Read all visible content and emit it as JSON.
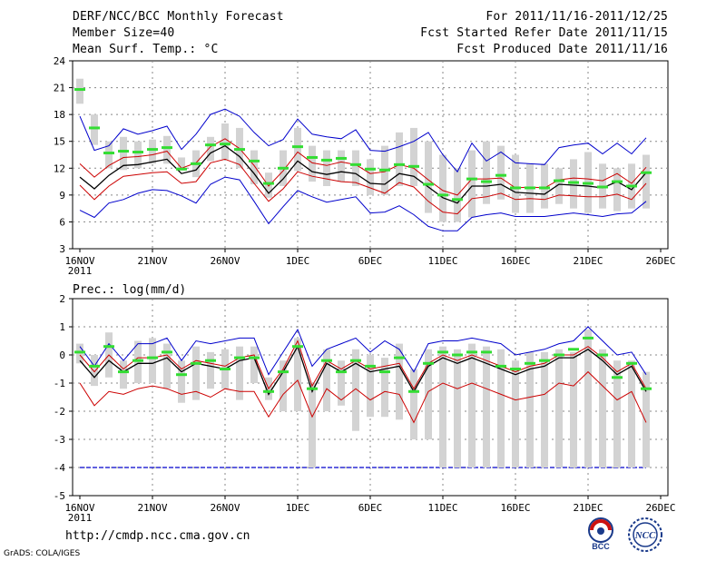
{
  "header": {
    "title": "DERF/NCC/BCC Monthly Forecast",
    "member": "Member Size=40",
    "period": "For 2011/11/16-2011/12/25",
    "refer": "Fcst Started Refer Date 2011/11/15",
    "produced": "Fcst Produced Date 2011/11/16"
  },
  "footer": {
    "url": "http://cmdp.ncc.cma.gov.cn",
    "credit": "GrADS: COLA/IGES",
    "logo_left_text": "BCC",
    "logo_right_text": "NCC"
  },
  "colors": {
    "mean": "#000000",
    "spread": "#cc0000",
    "extreme": "#0000cc",
    "box": "#d3d3d3",
    "median": "#33dd33",
    "grid": "#888888"
  },
  "chart_data": [
    {
      "type": "line",
      "ylabel": "Mean Surf. Temp.: °C",
      "ylim": [
        3,
        24
      ],
      "yticks": [
        3,
        6,
        9,
        12,
        15,
        18,
        21,
        24
      ],
      "x": [
        1,
        2,
        3,
        4,
        5,
        6,
        7,
        8,
        9,
        10,
        11,
        12,
        13,
        14,
        15,
        16,
        17,
        18,
        19,
        20,
        21,
        22,
        23,
        24,
        25,
        26,
        27,
        28,
        29,
        30,
        31,
        32,
        33,
        34,
        35,
        36,
        37,
        38,
        39,
        40
      ],
      "xticks": [
        {
          "x": 1,
          "label": "16NOV",
          "sub": "2011"
        },
        {
          "x": 6,
          "label": "21NOV"
        },
        {
          "x": 11,
          "label": "26NOV"
        },
        {
          "x": 16,
          "label": "1DEC"
        },
        {
          "x": 21,
          "label": "6DEC"
        },
        {
          "x": 26,
          "label": "11DEC"
        },
        {
          "x": 31,
          "label": "16DEC"
        },
        {
          "x": 36,
          "label": "21DEC"
        },
        {
          "x": 41,
          "label": "26DEC"
        }
      ],
      "series": [
        {
          "name": "max",
          "values": [
            17.8,
            14.0,
            14.5,
            16.4,
            15.8,
            16.2,
            16.7,
            14.1,
            15.8,
            18.0,
            18.6,
            17.8,
            16.0,
            14.5,
            15.2,
            17.5,
            15.8,
            15.5,
            15.3,
            16.3,
            14.0,
            13.9,
            14.4,
            15.0,
            16.0,
            13.5,
            11.6,
            14.8,
            12.8,
            13.8,
            12.6,
            12.5,
            12.4,
            14.3,
            14.6,
            14.8,
            13.6,
            14.8,
            13.6,
            15.4
          ]
        },
        {
          "name": "upper",
          "values": [
            12.5,
            11.0,
            12.3,
            13.2,
            13.3,
            13.5,
            13.9,
            12.0,
            12.6,
            14.4,
            15.3,
            14.2,
            12.3,
            10.0,
            11.7,
            13.8,
            12.6,
            12.3,
            12.7,
            12.4,
            11.4,
            11.6,
            12.4,
            12.0,
            10.7,
            9.5,
            9.0,
            10.8,
            10.8,
            10.9,
            9.8,
            9.9,
            9.8,
            10.7,
            10.9,
            10.8,
            10.6,
            11.4,
            10.3,
            12.1
          ]
        },
        {
          "name": "mean",
          "values": [
            11.0,
            9.7,
            11.2,
            12.3,
            12.4,
            12.7,
            13.0,
            11.4,
            11.8,
            13.7,
            14.5,
            13.3,
            11.4,
            9.2,
            10.8,
            12.8,
            11.6,
            11.3,
            11.6,
            11.4,
            10.3,
            10.2,
            11.4,
            11.1,
            9.9,
            8.7,
            8.1,
            10.0,
            10.0,
            10.2,
            9.3,
            9.2,
            9.1,
            10.2,
            10.1,
            10.0,
            9.8,
            10.5,
            9.6,
            11.5
          ]
        },
        {
          "name": "lower",
          "values": [
            10.1,
            8.5,
            10.0,
            11.1,
            11.3,
            11.5,
            11.6,
            10.3,
            10.5,
            12.6,
            13.0,
            12.4,
            10.3,
            8.3,
            9.7,
            11.6,
            11.1,
            10.8,
            10.5,
            10.4,
            9.8,
            9.2,
            10.4,
            9.9,
            8.3,
            7.1,
            6.9,
            8.6,
            8.8,
            9.2,
            8.5,
            8.6,
            8.5,
            9.0,
            8.9,
            8.8,
            8.8,
            9.1,
            8.5,
            10.3
          ]
        },
        {
          "name": "min",
          "values": [
            7.3,
            6.5,
            8.1,
            8.5,
            9.2,
            9.6,
            9.5,
            8.9,
            8.1,
            10.2,
            11.0,
            10.7,
            8.3,
            5.8,
            7.7,
            9.5,
            8.8,
            8.2,
            8.5,
            8.8,
            7.0,
            7.1,
            7.8,
            6.8,
            5.5,
            5.0,
            5.0,
            6.5,
            6.8,
            7.0,
            6.6,
            6.6,
            6.6,
            6.8,
            7.0,
            6.8,
            6.6,
            6.9,
            7.0,
            8.3
          ]
        }
      ],
      "boxes": [
        [
          19.2,
          22.0
        ],
        [
          14.6,
          18.0
        ],
        [
          12.0,
          15.0
        ],
        [
          11.8,
          15.5
        ],
        [
          12.0,
          15.0
        ],
        [
          12.5,
          15.2
        ],
        [
          12.5,
          15.6
        ],
        [
          11.8,
          13.2
        ],
        [
          11.0,
          14.0
        ],
        [
          12.8,
          15.5
        ],
        [
          13.0,
          17.0
        ],
        [
          12.0,
          16.5
        ],
        [
          10.2,
          14.0
        ],
        [
          8.7,
          11.5
        ],
        [
          10.0,
          14.0
        ],
        [
          11.7,
          16.5
        ],
        [
          10.5,
          14.5
        ],
        [
          10.0,
          14.0
        ],
        [
          10.5,
          14.0
        ],
        [
          10.0,
          14.0
        ],
        [
          9.0,
          13.0
        ],
        [
          9.0,
          14.5
        ],
        [
          10.0,
          16.0
        ],
        [
          10.0,
          16.5
        ],
        [
          7.0,
          15.0
        ],
        [
          6.0,
          13.5
        ],
        [
          6.0,
          12.0
        ],
        [
          6.5,
          14.0
        ],
        [
          8.0,
          15.0
        ],
        [
          8.5,
          14.5
        ],
        [
          7.0,
          13.5
        ],
        [
          7.0,
          12.5
        ],
        [
          7.5,
          12.5
        ],
        [
          8.0,
          12.0
        ],
        [
          7.5,
          13.0
        ],
        [
          7.0,
          13.8
        ],
        [
          7.5,
          12.5
        ],
        [
          7.2,
          12.0
        ],
        [
          7.5,
          12.5
        ],
        [
          7.5,
          13.5
        ]
      ],
      "medians": [
        20.8,
        16.5,
        13.7,
        13.9,
        13.8,
        14.1,
        14.3,
        11.9,
        12.5,
        14.6,
        14.7,
        14.1,
        12.8,
        10.3,
        12.0,
        14.4,
        13.2,
        12.9,
        13.1,
        12.4,
        11.9,
        11.8,
        12.4,
        12.2,
        10.2,
        9.0,
        8.5,
        10.8,
        10.5,
        11.2,
        9.8,
        9.8,
        9.8,
        10.6,
        10.4,
        10.3,
        9.9,
        10.5,
        10.0,
        11.5
      ]
    },
    {
      "type": "line",
      "ylabel": "Prec.: log(mm/d)",
      "ylim": [
        -5,
        2
      ],
      "yticks": [
        -5,
        -4,
        -3,
        -2,
        -1,
        0,
        1,
        2
      ],
      "x": [
        1,
        2,
        3,
        4,
        5,
        6,
        7,
        8,
        9,
        10,
        11,
        12,
        13,
        14,
        15,
        16,
        17,
        18,
        19,
        20,
        21,
        22,
        23,
        24,
        25,
        26,
        27,
        28,
        29,
        30,
        31,
        32,
        33,
        34,
        35,
        36,
        37,
        38,
        39,
        40
      ],
      "xticks": [
        {
          "x": 1,
          "label": "16NOV",
          "sub": "2011"
        },
        {
          "x": 6,
          "label": "21NOV"
        },
        {
          "x": 11,
          "label": "26NOV"
        },
        {
          "x": 16,
          "label": "1DEC"
        },
        {
          "x": 21,
          "label": "6DEC"
        },
        {
          "x": 26,
          "label": "11DEC"
        },
        {
          "x": 31,
          "label": "16DEC"
        },
        {
          "x": 36,
          "label": "21DEC"
        },
        {
          "x": 41,
          "label": "26DEC"
        }
      ],
      "reference_line": -4,
      "series": [
        {
          "name": "max",
          "values": [
            0.3,
            -0.4,
            0.4,
            -0.2,
            0.4,
            0.4,
            0.6,
            -0.2,
            0.5,
            0.4,
            0.5,
            0.6,
            0.6,
            -0.7,
            0.1,
            0.9,
            -0.4,
            0.2,
            0.4,
            0.6,
            0.1,
            0.5,
            0.2,
            -0.6,
            0.4,
            0.5,
            0.5,
            0.6,
            0.5,
            0.4,
            0.0,
            0.1,
            0.2,
            0.4,
            0.5,
            1.0,
            0.5,
            0.0,
            0.1,
            -0.7
          ]
        },
        {
          "name": "upper",
          "values": [
            0.0,
            -0.6,
            0.0,
            -0.5,
            -0.1,
            -0.1,
            0.0,
            -0.5,
            -0.2,
            -0.3,
            -0.4,
            -0.1,
            0.0,
            -1.2,
            -0.5,
            0.5,
            -1.1,
            -0.2,
            -0.5,
            -0.2,
            -0.5,
            -0.4,
            -0.3,
            -1.2,
            -0.3,
            0.0,
            -0.2,
            0.0,
            -0.2,
            -0.4,
            -0.6,
            -0.4,
            -0.3,
            0.0,
            0.0,
            0.3,
            -0.1,
            -0.6,
            -0.3,
            -1.2
          ]
        },
        {
          "name": "mean",
          "values": [
            -0.2,
            -0.8,
            -0.2,
            -0.6,
            -0.3,
            -0.3,
            -0.1,
            -0.6,
            -0.3,
            -0.4,
            -0.5,
            -0.2,
            -0.1,
            -1.4,
            -0.6,
            0.3,
            -1.3,
            -0.3,
            -0.6,
            -0.3,
            -0.6,
            -0.5,
            -0.4,
            -1.3,
            -0.4,
            -0.1,
            -0.3,
            -0.1,
            -0.3,
            -0.5,
            -0.7,
            -0.5,
            -0.4,
            -0.1,
            -0.1,
            0.2,
            -0.2,
            -0.7,
            -0.4,
            -1.3
          ]
        },
        {
          "name": "lower",
          "values": [
            -1.0,
            -1.8,
            -1.3,
            -1.4,
            -1.2,
            -1.1,
            -1.2,
            -1.4,
            -1.3,
            -1.5,
            -1.2,
            -1.3,
            -1.3,
            -2.2,
            -1.4,
            -0.9,
            -2.2,
            -1.2,
            -1.6,
            -1.2,
            -1.6,
            -1.3,
            -1.4,
            -2.4,
            -1.3,
            -1.0,
            -1.2,
            -1.0,
            -1.2,
            -1.4,
            -1.6,
            -1.5,
            -1.4,
            -1.0,
            -1.1,
            -0.6,
            -1.1,
            -1.6,
            -1.3,
            -2.4
          ]
        }
      ],
      "boxes": [
        [
          -0.3,
          0.4
        ],
        [
          -1.1,
          0.0
        ],
        [
          -0.8,
          0.8
        ],
        [
          -1.2,
          -0.2
        ],
        [
          -1.0,
          0.5
        ],
        [
          -1.0,
          0.6
        ],
        [
          -1.2,
          0.4
        ],
        [
          -1.7,
          -0.2
        ],
        [
          -1.6,
          0.3
        ],
        [
          -1.2,
          0.1
        ],
        [
          -1.2,
          0.2
        ],
        [
          -1.6,
          0.3
        ],
        [
          -1.0,
          0.3
        ],
        [
          -1.6,
          -0.8
        ],
        [
          -2.0,
          -0.2
        ],
        [
          -2.0,
          0.6
        ],
        [
          -4.0,
          -1.0
        ],
        [
          -2.0,
          0.2
        ],
        [
          -1.8,
          -0.2
        ],
        [
          -2.7,
          0.2
        ],
        [
          -2.2,
          0.0
        ],
        [
          -2.2,
          -0.1
        ],
        [
          -2.3,
          0.4
        ],
        [
          -3.0,
          -0.5
        ],
        [
          -3.0,
          0.2
        ],
        [
          -4.0,
          0.3
        ],
        [
          -4.0,
          0.2
        ],
        [
          -4.0,
          0.4
        ],
        [
          -4.0,
          0.3
        ],
        [
          -4.0,
          0.2
        ],
        [
          -4.0,
          -0.2
        ],
        [
          -4.0,
          0.1
        ],
        [
          -4.0,
          0.1
        ],
        [
          -4.0,
          0.2
        ],
        [
          -4.0,
          0.1
        ],
        [
          -4.0,
          0.9
        ],
        [
          -4.0,
          0.2
        ],
        [
          -4.0,
          -0.2
        ],
        [
          -4.0,
          -0.2
        ],
        [
          -4.0,
          -0.6
        ]
      ],
      "medians": [
        0.1,
        -0.4,
        0.3,
        -0.6,
        -0.2,
        -0.1,
        0.1,
        -0.7,
        -0.3,
        -0.2,
        -0.5,
        -0.1,
        -0.1,
        -1.3,
        -0.6,
        0.3,
        -1.2,
        -0.2,
        -0.6,
        -0.2,
        -0.4,
        -0.6,
        -0.1,
        -1.3,
        -0.3,
        0.1,
        0.0,
        0.1,
        0.1,
        -0.4,
        -0.5,
        -0.3,
        -0.2,
        0.0,
        0.2,
        0.6,
        0.0,
        -0.8,
        -0.3,
        -1.2
      ]
    }
  ]
}
